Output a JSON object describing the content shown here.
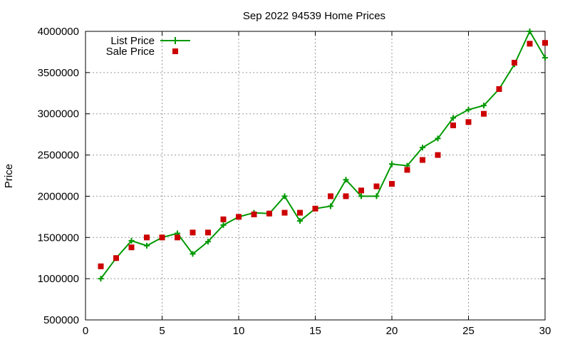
{
  "chart_data": {
    "type": "line",
    "title": "Sep 2022 94539 Home Prices",
    "xlabel": "",
    "ylabel": "Price",
    "xlim": [
      0,
      30
    ],
    "ylim": [
      500000,
      4000000
    ],
    "xticks": [
      0,
      5,
      10,
      15,
      20,
      25,
      30
    ],
    "yticks": [
      500000,
      1000000,
      1500000,
      2000000,
      2500000,
      3000000,
      3500000,
      4000000
    ],
    "grid": true,
    "legend_position": "top-left",
    "series": [
      {
        "name": "List Price",
        "style": "line-with-plus-markers",
        "color": "#009900",
        "points": [
          [
            1,
            1000000
          ],
          [
            2,
            1250000
          ],
          [
            3,
            1460000
          ],
          [
            4,
            1400000
          ],
          [
            5,
            1500000
          ],
          [
            6,
            1550000
          ],
          [
            7,
            1300000
          ],
          [
            8,
            1450000
          ],
          [
            9,
            1650000
          ],
          [
            10,
            1750000
          ],
          [
            11,
            1800000
          ],
          [
            12,
            1790000
          ],
          [
            13,
            2000000
          ],
          [
            14,
            1700000
          ],
          [
            15,
            1850000
          ],
          [
            16,
            1880000
          ],
          [
            17,
            2200000
          ],
          [
            18,
            2000000
          ],
          [
            19,
            2000000
          ],
          [
            20,
            2390000
          ],
          [
            21,
            2370000
          ],
          [
            22,
            2590000
          ],
          [
            23,
            2700000
          ],
          [
            24,
            2950000
          ],
          [
            25,
            3050000
          ],
          [
            26,
            3100000
          ],
          [
            27,
            3300000
          ],
          [
            28,
            3600000
          ],
          [
            29,
            4000000
          ],
          [
            30,
            3680000
          ]
        ]
      },
      {
        "name": "Sale Price",
        "style": "square-markers",
        "color": "#cc0000",
        "points": [
          [
            1,
            1150000
          ],
          [
            2,
            1250000
          ],
          [
            3,
            1380000
          ],
          [
            4,
            1500000
          ],
          [
            5,
            1500000
          ],
          [
            6,
            1500000
          ],
          [
            7,
            1560000
          ],
          [
            8,
            1560000
          ],
          [
            9,
            1720000
          ],
          [
            10,
            1750000
          ],
          [
            11,
            1780000
          ],
          [
            12,
            1790000
          ],
          [
            13,
            1800000
          ],
          [
            14,
            1800000
          ],
          [
            15,
            1850000
          ],
          [
            16,
            2000000
          ],
          [
            17,
            2000000
          ],
          [
            18,
            2070000
          ],
          [
            19,
            2120000
          ],
          [
            20,
            2150000
          ],
          [
            21,
            2320000
          ],
          [
            22,
            2440000
          ],
          [
            23,
            2500000
          ],
          [
            24,
            2860000
          ],
          [
            25,
            2900000
          ],
          [
            26,
            3000000
          ],
          [
            27,
            3300000
          ],
          [
            28,
            3620000
          ],
          [
            29,
            3850000
          ],
          [
            30,
            3860000
          ]
        ]
      }
    ]
  }
}
